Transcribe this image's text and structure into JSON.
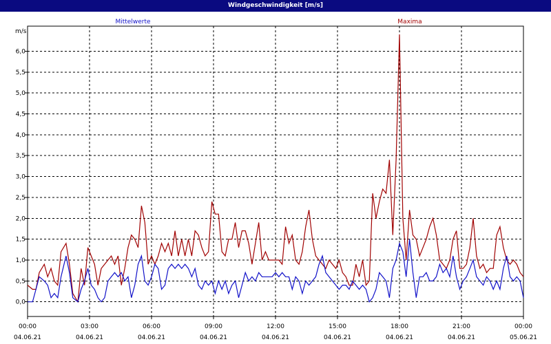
{
  "window": {
    "title": "Windgeschwindigkeit [m/s]"
  },
  "chart_data": {
    "type": "line",
    "title": "Windgeschwindigkeit [m/s]",
    "ylabel": "m/s",
    "xlabel": "",
    "ylim": [
      -0.35,
      6.6
    ],
    "xlim": [
      "2021-06-04 00:00",
      "2021-06-05 00:00"
    ],
    "yticks": [
      {
        "value": 0.0,
        "label": "0,0"
      },
      {
        "value": 0.5,
        "label": "0,5"
      },
      {
        "value": 1.0,
        "label": "1,0"
      },
      {
        "value": 1.5,
        "label": "1,5"
      },
      {
        "value": 2.0,
        "label": "2,0"
      },
      {
        "value": 2.5,
        "label": "2,5"
      },
      {
        "value": 3.0,
        "label": "3,0"
      },
      {
        "value": 3.5,
        "label": "3,5"
      },
      {
        "value": 4.0,
        "label": "4,0"
      },
      {
        "value": 4.5,
        "label": "4,5"
      },
      {
        "value": 5.0,
        "label": "5,0"
      },
      {
        "value": 5.5,
        "label": "5,5"
      },
      {
        "value": 6.0,
        "label": "6,0"
      }
    ],
    "xticks": [
      {
        "hour": 0,
        "time": "00:00",
        "date": "04.06.21"
      },
      {
        "hour": 3,
        "time": "03:00",
        "date": "04.06.21"
      },
      {
        "hour": 6,
        "time": "06:00",
        "date": "04.06.21"
      },
      {
        "hour": 9,
        "time": "09:00",
        "date": "04.06.21"
      },
      {
        "hour": 12,
        "time": "12:00",
        "date": "04.06.21"
      },
      {
        "hour": 15,
        "time": "15:00",
        "date": "04.06.21"
      },
      {
        "hour": 18,
        "time": "18:00",
        "date": "04.06.21"
      },
      {
        "hour": 21,
        "time": "21:00",
        "date": "04.06.21"
      },
      {
        "hour": 24,
        "time": "00:00",
        "date": "05.06.21"
      }
    ],
    "grid": true,
    "legend_position": "top",
    "series": [
      {
        "name": "Mittelwerte",
        "color": "#1010c8",
        "points": [
          [
            0.0,
            0.0
          ],
          [
            0.3,
            0.0
          ],
          [
            0.5,
            0.3
          ],
          [
            0.7,
            0.6
          ],
          [
            1.0,
            0.5
          ],
          [
            1.2,
            0.4
          ],
          [
            1.4,
            0.1
          ],
          [
            1.6,
            0.2
          ],
          [
            1.8,
            0.1
          ],
          [
            2.0,
            0.6
          ],
          [
            2.3,
            1.1
          ],
          [
            2.5,
            0.7
          ],
          [
            2.7,
            0.1
          ],
          [
            3.0,
            0.0
          ],
          [
            3.2,
            0.3
          ],
          [
            3.4,
            0.5
          ],
          [
            3.6,
            0.8
          ],
          [
            3.8,
            0.4
          ],
          [
            4.0,
            0.3
          ],
          [
            4.2,
            0.1
          ],
          [
            4.4,
            0.0
          ],
          [
            4.6,
            0.1
          ],
          [
            4.8,
            0.5
          ],
          [
            5.0,
            0.6
          ],
          [
            5.2,
            0.7
          ],
          [
            5.4,
            0.6
          ],
          [
            5.6,
            0.7
          ],
          [
            5.8,
            0.5
          ],
          [
            6.0,
            0.6
          ],
          [
            6.2,
            0.1
          ],
          [
            6.4,
            0.4
          ],
          [
            6.6,
            0.9
          ],
          [
            6.8,
            1.1
          ],
          [
            7.0,
            0.5
          ],
          [
            7.2,
            0.4
          ],
          [
            7.4,
            0.6
          ],
          [
            7.6,
            0.9
          ],
          [
            7.8,
            0.8
          ],
          [
            8.0,
            0.3
          ],
          [
            8.2,
            0.4
          ],
          [
            8.4,
            0.8
          ],
          [
            8.6,
            0.9
          ],
          [
            8.8,
            0.8
          ],
          [
            9.0,
            0.9
          ],
          [
            9.2,
            0.8
          ],
          [
            9.4,
            0.9
          ],
          [
            9.6,
            0.8
          ],
          [
            9.8,
            0.6
          ],
          [
            10.0,
            0.8
          ],
          [
            10.2,
            0.4
          ],
          [
            10.4,
            0.3
          ],
          [
            10.6,
            0.5
          ],
          [
            10.8,
            0.4
          ],
          [
            11.0,
            0.5
          ],
          [
            11.2,
            0.2
          ],
          [
            11.4,
            0.5
          ],
          [
            11.6,
            0.3
          ],
          [
            11.8,
            0.5
          ],
          [
            12.0,
            0.2
          ],
          [
            12.2,
            0.4
          ],
          [
            12.4,
            0.5
          ],
          [
            12.6,
            0.1
          ],
          [
            12.8,
            0.4
          ],
          [
            13.0,
            0.7
          ],
          [
            13.2,
            0.5
          ],
          [
            13.4,
            0.6
          ],
          [
            13.6,
            0.5
          ],
          [
            13.8,
            0.7
          ],
          [
            14.0,
            0.6
          ],
          [
            14.2,
            0.6
          ],
          [
            14.4,
            0.6
          ],
          [
            14.6,
            0.6
          ],
          [
            14.8,
            0.7
          ],
          [
            15.0,
            0.6
          ],
          [
            15.2,
            0.7
          ],
          [
            15.4,
            0.6
          ],
          [
            15.6,
            0.6
          ],
          [
            15.8,
            0.3
          ],
          [
            16.0,
            0.6
          ],
          [
            16.2,
            0.5
          ],
          [
            16.4,
            0.2
          ],
          [
            16.6,
            0.5
          ],
          [
            16.8,
            0.4
          ],
          [
            17.0,
            0.5
          ],
          [
            17.2,
            0.6
          ],
          [
            17.4,
            0.9
          ],
          [
            17.6,
            1.1
          ],
          [
            17.8,
            0.7
          ],
          [
            18.0,
            0.6
          ],
          [
            18.2,
            0.5
          ],
          [
            18.4,
            0.4
          ],
          [
            18.6,
            0.3
          ],
          [
            18.8,
            0.4
          ],
          [
            19.0,
            0.4
          ],
          [
            19.2,
            0.3
          ],
          [
            19.4,
            0.5
          ],
          [
            19.6,
            0.4
          ],
          [
            19.8,
            0.3
          ],
          [
            20.0,
            0.4
          ],
          [
            20.2,
            0.3
          ],
          [
            20.4,
            0.0
          ],
          [
            20.6,
            0.1
          ],
          [
            20.8,
            0.3
          ],
          [
            21.0,
            0.7
          ],
          [
            21.2,
            0.6
          ],
          [
            21.4,
            0.5
          ],
          [
            21.6,
            0.1
          ],
          [
            21.8,
            0.8
          ],
          [
            22.0,
            1.0
          ],
          [
            22.2,
            1.4
          ],
          [
            22.4,
            1.2
          ],
          [
            22.6,
            0.6
          ],
          [
            22.8,
            1.5
          ],
          [
            23.0,
            0.7
          ],
          [
            23.2,
            0.1
          ],
          [
            23.4,
            0.6
          ],
          [
            23.6,
            0.6
          ],
          [
            23.8,
            0.7
          ],
          [
            24.0,
            0.5
          ],
          [
            24.2,
            0.5
          ],
          [
            24.4,
            0.6
          ],
          [
            24.6,
            0.9
          ],
          [
            24.8,
            0.7
          ],
          [
            25.0,
            0.8
          ],
          [
            25.2,
            0.6
          ],
          [
            25.4,
            1.1
          ],
          [
            25.6,
            0.6
          ],
          [
            25.8,
            0.3
          ],
          [
            26.0,
            0.5
          ],
          [
            26.2,
            0.6
          ],
          [
            26.4,
            0.8
          ],
          [
            26.6,
            1.0
          ],
          [
            26.8,
            0.6
          ],
          [
            27.0,
            0.5
          ],
          [
            27.2,
            0.4
          ],
          [
            27.4,
            0.6
          ],
          [
            27.6,
            0.5
          ],
          [
            27.8,
            0.3
          ],
          [
            28.0,
            0.5
          ],
          [
            28.2,
            0.3
          ],
          [
            28.4,
            0.8
          ],
          [
            28.6,
            1.1
          ],
          [
            28.8,
            0.6
          ],
          [
            29.0,
            0.5
          ],
          [
            29.2,
            0.6
          ],
          [
            29.4,
            0.5
          ],
          [
            29.6,
            0.1
          ]
        ]
      },
      {
        "name": "Maxima",
        "color": "#a00000",
        "points": [
          [
            0.0,
            0.4
          ],
          [
            0.3,
            0.3
          ],
          [
            0.5,
            0.3
          ],
          [
            0.7,
            0.7
          ],
          [
            1.0,
            0.9
          ],
          [
            1.2,
            0.6
          ],
          [
            1.4,
            0.8
          ],
          [
            1.6,
            0.5
          ],
          [
            1.8,
            0.4
          ],
          [
            2.0,
            1.2
          ],
          [
            2.3,
            1.4
          ],
          [
            2.5,
            0.9
          ],
          [
            2.7,
            0.2
          ],
          [
            3.0,
            0.0
          ],
          [
            3.2,
            0.8
          ],
          [
            3.4,
            0.4
          ],
          [
            3.6,
            1.3
          ],
          [
            3.8,
            1.1
          ],
          [
            4.0,
            0.9
          ],
          [
            4.2,
            0.4
          ],
          [
            4.4,
            0.8
          ],
          [
            4.6,
            0.9
          ],
          [
            4.8,
            1.0
          ],
          [
            5.0,
            1.1
          ],
          [
            5.2,
            0.9
          ],
          [
            5.4,
            1.1
          ],
          [
            5.6,
            0.4
          ],
          [
            5.8,
            0.8
          ],
          [
            6.0,
            1.3
          ],
          [
            6.2,
            1.6
          ],
          [
            6.4,
            1.5
          ],
          [
            6.6,
            1.3
          ],
          [
            6.8,
            2.3
          ],
          [
            7.0,
            1.9
          ],
          [
            7.2,
            0.9
          ],
          [
            7.4,
            1.1
          ],
          [
            7.6,
            0.9
          ],
          [
            7.8,
            1.1
          ],
          [
            8.0,
            1.4
          ],
          [
            8.2,
            1.2
          ],
          [
            8.4,
            1.4
          ],
          [
            8.6,
            1.1
          ],
          [
            8.8,
            1.7
          ],
          [
            9.0,
            1.1
          ],
          [
            9.2,
            1.5
          ],
          [
            9.4,
            1.1
          ],
          [
            9.6,
            1.5
          ],
          [
            9.8,
            1.1
          ],
          [
            10.0,
            1.7
          ],
          [
            10.2,
            1.6
          ],
          [
            10.4,
            1.3
          ],
          [
            10.6,
            1.1
          ],
          [
            10.8,
            1.2
          ],
          [
            11.0,
            2.4
          ],
          [
            11.2,
            2.1
          ],
          [
            11.4,
            2.1
          ],
          [
            11.6,
            1.2
          ],
          [
            11.8,
            1.1
          ],
          [
            12.0,
            1.5
          ],
          [
            12.2,
            1.5
          ],
          [
            12.4,
            1.9
          ],
          [
            12.6,
            1.3
          ],
          [
            12.8,
            1.7
          ],
          [
            13.0,
            1.7
          ],
          [
            13.2,
            1.4
          ],
          [
            13.4,
            0.9
          ],
          [
            13.6,
            1.4
          ],
          [
            13.8,
            1.9
          ],
          [
            14.0,
            1.0
          ],
          [
            14.2,
            1.2
          ],
          [
            14.4,
            1.0
          ],
          [
            14.6,
            1.0
          ],
          [
            14.8,
            1.0
          ],
          [
            15.0,
            1.0
          ],
          [
            15.2,
            0.9
          ],
          [
            15.4,
            1.8
          ],
          [
            15.6,
            1.4
          ],
          [
            15.8,
            1.6
          ],
          [
            16.0,
            1.0
          ],
          [
            16.2,
            0.9
          ],
          [
            16.4,
            1.2
          ],
          [
            16.6,
            1.8
          ],
          [
            16.8,
            2.2
          ],
          [
            17.0,
            1.5
          ],
          [
            17.2,
            1.1
          ],
          [
            17.4,
            1.0
          ],
          [
            17.6,
            0.9
          ],
          [
            17.8,
            0.8
          ],
          [
            18.0,
            1.0
          ],
          [
            18.2,
            0.9
          ],
          [
            18.4,
            0.8
          ],
          [
            18.6,
            1.0
          ],
          [
            18.8,
            0.7
          ],
          [
            19.0,
            0.6
          ],
          [
            19.2,
            0.4
          ],
          [
            19.4,
            0.4
          ],
          [
            19.6,
            0.9
          ],
          [
            19.8,
            0.6
          ],
          [
            20.0,
            1.0
          ],
          [
            20.2,
            0.4
          ],
          [
            20.4,
            0.5
          ],
          [
            20.6,
            2.6
          ],
          [
            20.8,
            2.0
          ],
          [
            21.0,
            2.4
          ],
          [
            21.2,
            2.7
          ],
          [
            21.4,
            2.6
          ],
          [
            21.6,
            3.4
          ],
          [
            21.8,
            1.6
          ],
          [
            22.0,
            3.4
          ],
          [
            22.2,
            6.4
          ],
          [
            22.4,
            2.0
          ],
          [
            22.6,
            1.0
          ],
          [
            22.8,
            2.2
          ],
          [
            23.0,
            1.6
          ],
          [
            23.2,
            1.5
          ],
          [
            23.4,
            1.1
          ],
          [
            23.6,
            1.3
          ],
          [
            23.8,
            1.5
          ],
          [
            24.0,
            1.8
          ],
          [
            24.2,
            2.0
          ],
          [
            24.4,
            1.6
          ],
          [
            24.6,
            1.0
          ],
          [
            24.8,
            0.9
          ],
          [
            25.0,
            0.8
          ],
          [
            25.2,
            1.0
          ],
          [
            25.4,
            1.5
          ],
          [
            25.6,
            1.7
          ],
          [
            25.8,
            0.8
          ],
          [
            26.0,
            0.8
          ],
          [
            26.2,
            0.9
          ],
          [
            26.4,
            1.3
          ],
          [
            26.6,
            2.0
          ],
          [
            26.8,
            1.1
          ],
          [
            27.0,
            0.8
          ],
          [
            27.2,
            0.9
          ],
          [
            27.4,
            0.7
          ],
          [
            27.6,
            0.8
          ],
          [
            27.8,
            0.8
          ],
          [
            28.0,
            1.6
          ],
          [
            28.2,
            1.8
          ],
          [
            28.4,
            1.3
          ],
          [
            28.6,
            1.0
          ],
          [
            28.8,
            0.9
          ],
          [
            29.0,
            1.0
          ],
          [
            29.2,
            0.9
          ],
          [
            29.4,
            0.7
          ],
          [
            29.6,
            0.6
          ]
        ]
      }
    ]
  }
}
